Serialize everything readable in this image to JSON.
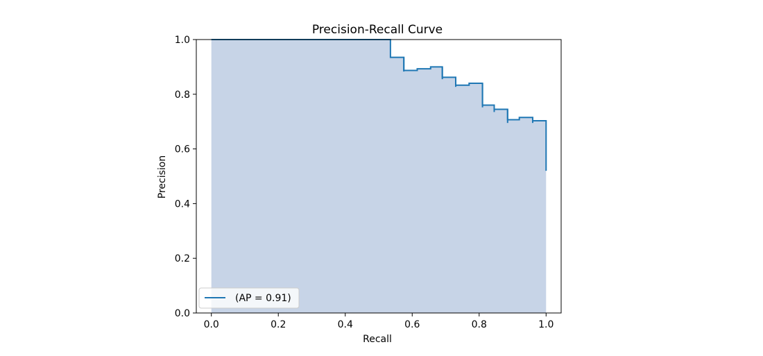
{
  "chart_data": {
    "type": "line",
    "title": "Precision-Recall Curve",
    "xlabel": "Recall",
    "ylabel": "Precision",
    "xlim": [
      -0.045,
      1.045
    ],
    "ylim": [
      0.0,
      1.0
    ],
    "xticks": [
      0.0,
      0.2,
      0.4,
      0.6,
      0.8,
      1.0
    ],
    "xtick_labels": [
      "0.0",
      "0.2",
      "0.4",
      "0.6",
      "0.8",
      "1.0"
    ],
    "yticks": [
      0.0,
      0.2,
      0.4,
      0.6,
      0.8,
      1.0
    ],
    "ytick_labels": [
      "0.0",
      "0.2",
      "0.4",
      "0.6",
      "0.8",
      "1.0"
    ],
    "grid": false,
    "legend_position": "lower-left",
    "legend_label": "(AP = 0.91)",
    "line_color": "#1f77b4",
    "fill_color": "#c7d4e7",
    "step": "post",
    "series": [
      {
        "name": "(AP = 0.91)",
        "x": [
          0.0,
          0.535,
          0.535,
          0.575,
          0.575,
          0.615,
          0.615,
          0.655,
          0.655,
          0.69,
          0.69,
          0.73,
          0.73,
          0.77,
          0.77,
          0.81,
          0.81,
          0.845,
          0.845,
          0.885,
          0.885,
          0.92,
          0.92,
          0.96,
          0.96,
          1.0,
          1.0
        ],
        "y": [
          1.0,
          1.0,
          0.935,
          0.935,
          0.887,
          0.887,
          0.893,
          0.893,
          0.9,
          0.9,
          0.862,
          0.862,
          0.833,
          0.833,
          0.84,
          0.84,
          0.76,
          0.76,
          0.745,
          0.745,
          0.707,
          0.707,
          0.715,
          0.715,
          0.703,
          0.703,
          0.52
        ]
      }
    ],
    "drops": [
      {
        "x": 0.575,
        "y_from": 0.935,
        "y_to": 0.883
      },
      {
        "x": 0.69,
        "y_from": 0.9,
        "y_to": 0.855
      },
      {
        "x": 0.73,
        "y_from": 0.862,
        "y_to": 0.827
      },
      {
        "x": 0.81,
        "y_from": 0.84,
        "y_to": 0.752
      },
      {
        "x": 0.845,
        "y_from": 0.76,
        "y_to": 0.735
      },
      {
        "x": 0.885,
        "y_from": 0.745,
        "y_to": 0.695
      },
      {
        "x": 0.96,
        "y_from": 0.715,
        "y_to": 0.695
      }
    ]
  }
}
